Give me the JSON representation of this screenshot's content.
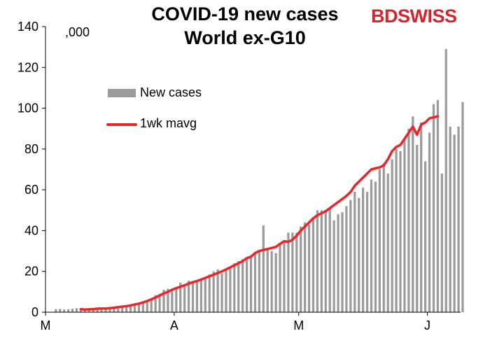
{
  "chart_data": {
    "type": "bar",
    "title_line1": "COVID-19 new cases",
    "title_line2": "World ex-G10",
    "unit_label": ",000",
    "logo_bd": "BD",
    "logo_swiss": "SWISS",
    "ylim": [
      0,
      140
    ],
    "yticks": [
      "0",
      "20",
      "40",
      "60",
      "80",
      "100",
      "120",
      "140"
    ],
    "xtick_labels": [
      "M",
      "A",
      "M",
      "J"
    ],
    "xtick_days": [
      0,
      31,
      61,
      92
    ],
    "series": [
      {
        "name": "New cases",
        "style": "bar",
        "color": "#9b9b9b",
        "values": [
          1.5,
          1.6,
          1.3,
          1.4,
          1.7,
          2,
          2,
          1.8,
          1.5,
          1.4,
          1.2,
          1.6,
          1.9,
          2.2,
          2.3,
          2.6,
          2.8,
          3.1,
          3.6,
          4.2,
          4.5,
          5,
          5.5,
          6.8,
          8.3,
          9,
          11,
          11.5,
          11,
          12,
          14.5,
          13.5,
          15.5,
          14.5,
          15,
          16,
          17,
          18.5,
          20,
          21,
          19,
          21,
          22,
          24,
          25,
          26,
          27,
          27.5,
          29,
          30,
          42.5,
          31,
          30,
          29,
          33,
          35,
          39,
          39,
          39,
          42,
          44,
          43,
          46,
          50,
          50,
          50,
          51,
          45,
          48,
          49,
          52,
          55,
          59,
          56,
          61,
          59,
          65,
          64,
          70,
          73,
          68,
          75,
          80,
          79,
          85,
          90,
          96,
          82,
          93,
          74,
          88,
          102,
          104,
          68,
          129,
          91,
          87,
          91,
          103
        ]
      },
      {
        "name": "1wk mavg",
        "style": "line",
        "color": "#e8262c",
        "start_day": 8,
        "values": [
          1.5,
          1.3,
          1.4,
          1.5,
          1.7,
          1.8,
          1.8,
          2,
          2.2,
          2.5,
          2.7,
          3,
          3.3,
          3.8,
          4.2,
          4.8,
          5.5,
          6.3,
          7.2,
          8.2,
          9.2,
          10,
          11,
          11.8,
          12.5,
          13.2,
          14,
          14.7,
          15.3,
          16,
          16.8,
          17.6,
          18.4,
          19.2,
          20,
          21,
          22,
          23,
          24,
          25,
          26.5,
          27.2,
          29,
          30,
          30.5,
          31,
          31.5,
          32,
          33.5,
          34.8,
          34.5,
          35.5,
          37.5,
          40,
          42,
          44,
          46,
          47.5,
          48.5,
          49.5,
          51,
          52.5,
          54,
          55.5,
          57,
          59,
          62,
          64,
          66,
          68,
          70,
          70.5,
          71,
          72,
          75,
          79,
          81,
          82,
          85,
          88,
          91,
          87,
          92,
          93,
          95,
          95.5,
          96
        ]
      }
    ]
  }
}
